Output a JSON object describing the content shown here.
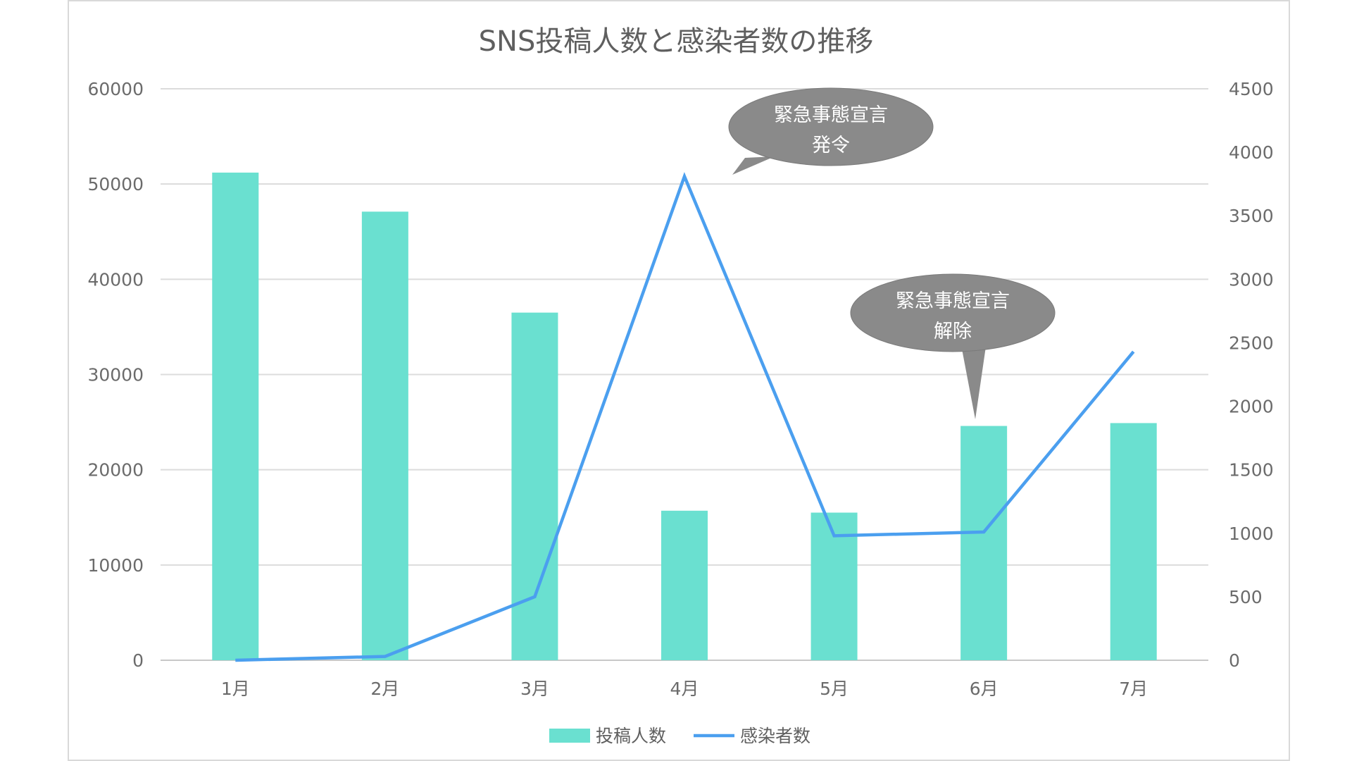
{
  "chart_data": {
    "type": "bar",
    "title": "SNS投稿人数と感染者数の推移",
    "categories": [
      "1月",
      "2月",
      "3月",
      "4月",
      "5月",
      "6月",
      "7月"
    ],
    "series": [
      {
        "name": "投稿人数",
        "type": "bar",
        "axis": "left",
        "color": "#6ae0d0",
        "values": [
          51200,
          47100,
          36500,
          15700,
          15500,
          24600,
          24900
        ]
      },
      {
        "name": "感染者数",
        "type": "line",
        "axis": "right",
        "color": "#4b9fef",
        "values": [
          0,
          30,
          500,
          3810,
          980,
          1010,
          2430
        ]
      }
    ],
    "ylim_left": [
      0,
      60000
    ],
    "yticks_left": [
      "0",
      "10000",
      "20000",
      "30000",
      "40000",
      "50000",
      "60000"
    ],
    "ylim_right": [
      0,
      4500
    ],
    "yticks_right": [
      "0",
      "500",
      "1000",
      "1500",
      "2000",
      "2500",
      "3000",
      "3500",
      "4000",
      "4500"
    ],
    "grid": true,
    "legend_position": "bottom",
    "annotations": [
      {
        "lines": [
          "緊急事態宣言",
          "発令"
        ],
        "target": "4月"
      },
      {
        "lines": [
          "緊急事態宣言",
          "解除"
        ],
        "target": "6月"
      }
    ]
  }
}
